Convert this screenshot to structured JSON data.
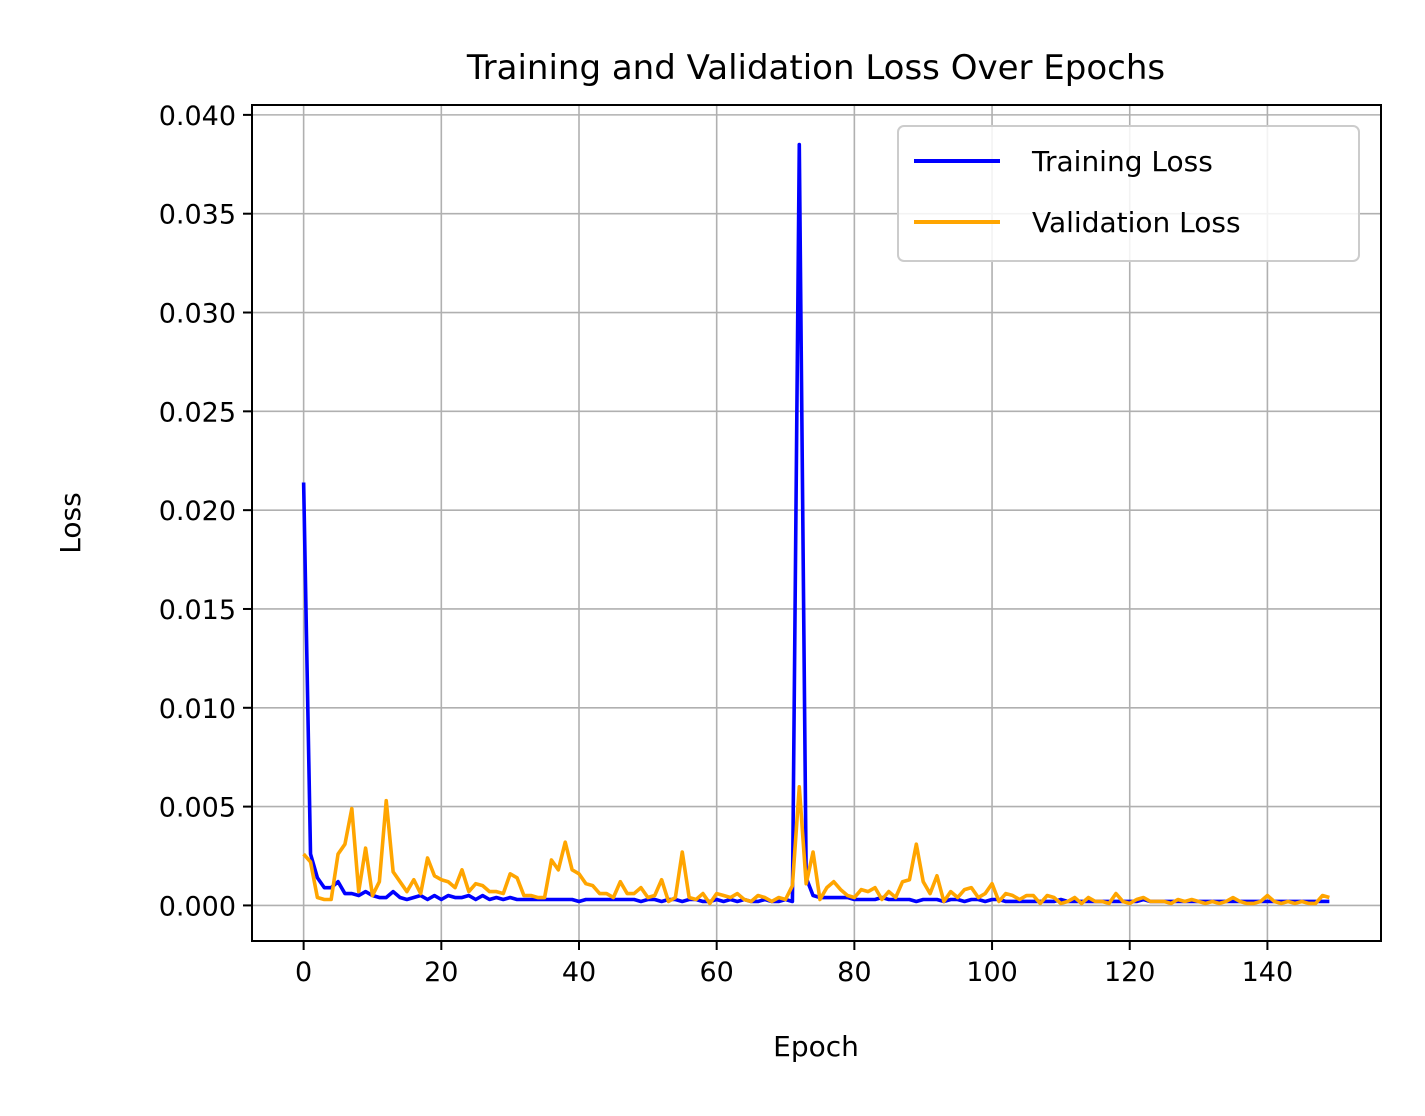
{
  "chart_data": {
    "type": "line",
    "title": "Training and Validation Loss Over Epochs",
    "xlabel": "Epoch",
    "ylabel": "Loss",
    "xlim": [
      -7.5,
      156.5
    ],
    "ylim": [
      -0.0018,
      0.0405
    ],
    "xticks": [
      0,
      20,
      40,
      60,
      80,
      100,
      120,
      140
    ],
    "xtick_labels": [
      "0",
      "20",
      "40",
      "60",
      "80",
      "100",
      "120",
      "140"
    ],
    "yticks": [
      0.0,
      0.005,
      0.01,
      0.015,
      0.02,
      0.025,
      0.03,
      0.035,
      0.04
    ],
    "ytick_labels": [
      "0.000",
      "0.005",
      "0.010",
      "0.015",
      "0.020",
      "0.025",
      "0.030",
      "0.035",
      "0.040"
    ],
    "grid": true,
    "legend_position": "top-right",
    "x": [
      0,
      1,
      2,
      3,
      4,
      5,
      6,
      7,
      8,
      9,
      10,
      11,
      12,
      13,
      14,
      15,
      16,
      17,
      18,
      19,
      20,
      21,
      22,
      23,
      24,
      25,
      26,
      27,
      28,
      29,
      30,
      31,
      32,
      33,
      34,
      35,
      36,
      37,
      38,
      39,
      40,
      41,
      42,
      43,
      44,
      45,
      46,
      47,
      48,
      49,
      50,
      51,
      52,
      53,
      54,
      55,
      56,
      57,
      58,
      59,
      60,
      61,
      62,
      63,
      64,
      65,
      66,
      67,
      68,
      69,
      70,
      71,
      72,
      73,
      74,
      75,
      76,
      77,
      78,
      79,
      80,
      81,
      82,
      83,
      84,
      85,
      86,
      87,
      88,
      89,
      90,
      91,
      92,
      93,
      94,
      95,
      96,
      97,
      98,
      99,
      100,
      101,
      102,
      103,
      104,
      105,
      106,
      107,
      108,
      109,
      110,
      111,
      112,
      113,
      114,
      115,
      116,
      117,
      118,
      119,
      120,
      121,
      122,
      123,
      124,
      125,
      126,
      127,
      128,
      129,
      130,
      131,
      132,
      133,
      134,
      135,
      136,
      137,
      138,
      139,
      140,
      141,
      142,
      143,
      144,
      145,
      146,
      147,
      148,
      149
    ],
    "series": [
      {
        "name": "Training Loss",
        "color": "#0000ff",
        "values": [
          0.0214,
          0.0026,
          0.0014,
          0.0009,
          0.0009,
          0.0012,
          0.0006,
          0.0006,
          0.0005,
          0.0007,
          0.0005,
          0.0004,
          0.0004,
          0.0007,
          0.0004,
          0.0003,
          0.0004,
          0.0005,
          0.0003,
          0.0005,
          0.0003,
          0.0005,
          0.0004,
          0.0004,
          0.0005,
          0.0003,
          0.0005,
          0.0003,
          0.0004,
          0.0003,
          0.0004,
          0.0003,
          0.0003,
          0.0003,
          0.0003,
          0.0003,
          0.0003,
          0.0003,
          0.0003,
          0.0003,
          0.0002,
          0.0003,
          0.0003,
          0.0003,
          0.0003,
          0.0003,
          0.0003,
          0.0003,
          0.0003,
          0.0002,
          0.0003,
          0.0003,
          0.0002,
          0.0003,
          0.0003,
          0.0002,
          0.0003,
          0.0003,
          0.0002,
          0.0002,
          0.0003,
          0.0002,
          0.0003,
          0.0002,
          0.0003,
          0.0002,
          0.0002,
          0.0003,
          0.0002,
          0.0002,
          0.0003,
          0.0002,
          0.0385,
          0.0014,
          0.0005,
          0.0004,
          0.0004,
          0.0004,
          0.0004,
          0.0004,
          0.0003,
          0.0003,
          0.0003,
          0.0003,
          0.0004,
          0.0003,
          0.0003,
          0.0003,
          0.0003,
          0.0002,
          0.0003,
          0.0003,
          0.0003,
          0.0002,
          0.0003,
          0.0003,
          0.0002,
          0.0003,
          0.0003,
          0.0002,
          0.0003,
          0.0003,
          0.0002,
          0.0002,
          0.0002,
          0.0002,
          0.0002,
          0.0002,
          0.0002,
          0.0002,
          0.0003,
          0.0002,
          0.0002,
          0.0002,
          0.0002,
          0.0002,
          0.0002,
          0.0002,
          0.0002,
          0.0002,
          0.0002,
          0.0002,
          0.0003,
          0.0002,
          0.0002,
          0.0002,
          0.0002,
          0.0002,
          0.0002,
          0.0002,
          0.0002,
          0.0002,
          0.0002,
          0.0002,
          0.0002,
          0.0002,
          0.0002,
          0.0002,
          0.0002,
          0.0002,
          0.0002,
          0.0002,
          0.0002,
          0.0002,
          0.0002,
          0.0002,
          0.0002,
          0.0002,
          0.0002,
          0.0002
        ]
      },
      {
        "name": "Validation Loss",
        "color": "#ffa500",
        "values": [
          0.0026,
          0.0022,
          0.0004,
          0.0003,
          0.0003,
          0.0026,
          0.0031,
          0.0049,
          0.0007,
          0.0029,
          0.0005,
          0.0012,
          0.0053,
          0.0017,
          0.0012,
          0.0007,
          0.0013,
          0.0006,
          0.0024,
          0.0015,
          0.0013,
          0.0012,
          0.0009,
          0.0018,
          0.0007,
          0.0011,
          0.001,
          0.0007,
          0.0007,
          0.0006,
          0.0016,
          0.0014,
          0.0005,
          0.0005,
          0.0004,
          0.0004,
          0.0023,
          0.0018,
          0.0032,
          0.0018,
          0.0016,
          0.0011,
          0.001,
          0.0006,
          0.0006,
          0.0004,
          0.0012,
          0.0006,
          0.0006,
          0.0009,
          0.0004,
          0.0005,
          0.0013,
          0.0002,
          0.0004,
          0.0027,
          0.0004,
          0.0003,
          0.0006,
          0.0001,
          0.0006,
          0.0005,
          0.0004,
          0.0006,
          0.0003,
          0.0002,
          0.0005,
          0.0004,
          0.0002,
          0.0004,
          0.0003,
          0.001,
          0.006,
          0.0011,
          0.0027,
          0.0003,
          0.0009,
          0.0012,
          0.0008,
          0.0005,
          0.0004,
          0.0008,
          0.0007,
          0.0009,
          0.0003,
          0.0007,
          0.0004,
          0.0012,
          0.0013,
          0.0031,
          0.0012,
          0.0006,
          0.0015,
          0.0002,
          0.0007,
          0.0004,
          0.0008,
          0.0009,
          0.0004,
          0.0006,
          0.0011,
          0.0002,
          0.0006,
          0.0005,
          0.0003,
          0.0005,
          0.0005,
          0.0001,
          0.0005,
          0.0004,
          0.0001,
          0.0002,
          0.0004,
          0.0001,
          0.0004,
          0.0002,
          0.0002,
          0.0001,
          0.0006,
          0.0002,
          0.0001,
          0.0003,
          0.0004,
          0.0002,
          0.0002,
          0.0002,
          0.0001,
          0.0003,
          0.0002,
          0.0003,
          0.0002,
          0.0001,
          0.0002,
          0.0001,
          0.0002,
          0.0004,
          0.0002,
          0.0001,
          0.0001,
          0.0002,
          0.0005,
          0.0002,
          0.0001,
          0.0002,
          0.0001,
          0.0002,
          0.0001,
          0.0001,
          0.0005,
          0.0004
        ]
      }
    ]
  }
}
